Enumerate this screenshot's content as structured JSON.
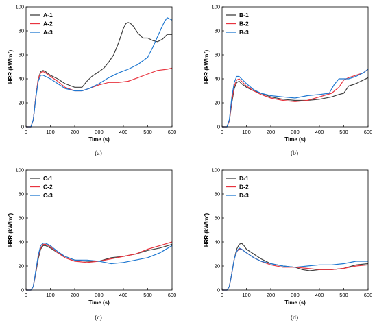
{
  "chart_data": [
    {
      "type": "line",
      "panel_label": "(a)",
      "xlabel": "Time (s)",
      "ylabel_prefix": "HRR (kW/m",
      "ylabel_sup": "2",
      "ylabel_suffix": ")",
      "xlim": [
        0,
        600
      ],
      "ylim": [
        0,
        100
      ],
      "xticks": [
        0,
        100,
        200,
        300,
        400,
        500,
        600
      ],
      "yticks": [
        0,
        20,
        40,
        60,
        80,
        100
      ],
      "grid": false,
      "legend_position": "top-left",
      "series": [
        {
          "name": "A-1",
          "color": "#404040",
          "x": [
            0,
            20,
            30,
            40,
            50,
            60,
            70,
            80,
            100,
            130,
            160,
            200,
            230,
            250,
            270,
            300,
            320,
            340,
            360,
            380,
            400,
            410,
            420,
            430,
            440,
            460,
            480,
            500,
            520,
            540,
            560,
            580,
            600
          ],
          "y": [
            0,
            0,
            6,
            25,
            40,
            46,
            47,
            46,
            43,
            40,
            36,
            33,
            33,
            38,
            42,
            46,
            49,
            54,
            60,
            70,
            82,
            86,
            87,
            86,
            84,
            78,
            74,
            74,
            72,
            71,
            73,
            77,
            77
          ]
        },
        {
          "name": "A-2",
          "color": "#e8343f",
          "x": [
            0,
            20,
            30,
            40,
            50,
            60,
            70,
            80,
            100,
            130,
            160,
            200,
            230,
            260,
            300,
            340,
            380,
            420,
            460,
            500,
            540,
            580,
            600
          ],
          "y": [
            0,
            0,
            6,
            25,
            40,
            45,
            46,
            45,
            42,
            38,
            33,
            30,
            30,
            32,
            35,
            37,
            37,
            38,
            41,
            44,
            47,
            48,
            49
          ]
        },
        {
          "name": "A-3",
          "color": "#1f78d1",
          "x": [
            0,
            20,
            30,
            40,
            50,
            60,
            70,
            80,
            100,
            130,
            160,
            200,
            230,
            260,
            300,
            340,
            380,
            420,
            460,
            500,
            520,
            540,
            560,
            570,
            580,
            590,
            600
          ],
          "y": [
            0,
            0,
            6,
            24,
            38,
            43,
            43,
            42,
            40,
            36,
            32,
            30,
            30,
            32,
            36,
            41,
            45,
            48,
            52,
            58,
            66,
            75,
            84,
            88,
            91,
            90,
            89
          ]
        }
      ]
    },
    {
      "type": "line",
      "panel_label": "(b)",
      "xlabel": "Time (s)",
      "ylabel_prefix": "HRR (kW/m",
      "ylabel_sup": "2",
      "ylabel_suffix": ")",
      "xlim": [
        0,
        600
      ],
      "ylim": [
        0,
        100
      ],
      "xticks": [
        0,
        100,
        200,
        300,
        400,
        500,
        600
      ],
      "yticks": [
        0,
        20,
        40,
        60,
        80,
        100
      ],
      "grid": false,
      "legend_position": "top-left",
      "series": [
        {
          "name": "B-1",
          "color": "#404040",
          "x": [
            0,
            20,
            30,
            40,
            50,
            60,
            70,
            80,
            100,
            130,
            160,
            200,
            250,
            300,
            350,
            400,
            450,
            480,
            500,
            520,
            550,
            580,
            600
          ],
          "y": [
            0,
            0,
            5,
            20,
            32,
            37,
            38,
            36,
            33,
            30,
            28,
            25,
            23,
            22,
            22,
            23,
            25,
            27,
            28,
            34,
            36,
            39,
            41
          ]
        },
        {
          "name": "B-2",
          "color": "#e8343f",
          "x": [
            0,
            20,
            30,
            40,
            50,
            60,
            70,
            80,
            100,
            130,
            160,
            200,
            250,
            300,
            350,
            400,
            450,
            480,
            500,
            520,
            550,
            580,
            600
          ],
          "y": [
            0,
            0,
            5,
            22,
            34,
            39,
            40,
            38,
            34,
            30,
            27,
            24,
            22,
            21,
            22,
            25,
            28,
            33,
            39,
            41,
            43,
            45,
            48
          ]
        },
        {
          "name": "B-3",
          "color": "#1f78d1",
          "x": [
            0,
            20,
            30,
            40,
            50,
            60,
            70,
            80,
            100,
            130,
            160,
            200,
            250,
            300,
            350,
            400,
            440,
            460,
            480,
            500,
            520,
            550,
            580,
            600
          ],
          "y": [
            0,
            0,
            6,
            25,
            37,
            42,
            42,
            40,
            36,
            31,
            28,
            26,
            25,
            24,
            26,
            27,
            28,
            35,
            40,
            40,
            40,
            42,
            45,
            48
          ]
        }
      ]
    },
    {
      "type": "line",
      "panel_label": "(c)",
      "xlabel": "Time (s)",
      "ylabel_prefix": "HRR (kW/m",
      "ylabel_sup": "2",
      "ylabel_suffix": ")",
      "xlim": [
        0,
        600
      ],
      "ylim": [
        0,
        100
      ],
      "xticks": [
        0,
        100,
        200,
        300,
        400,
        500,
        600
      ],
      "yticks": [
        0,
        20,
        40,
        60,
        80,
        100
      ],
      "grid": false,
      "legend_position": "top-left",
      "series": [
        {
          "name": "C-1",
          "color": "#404040",
          "x": [
            0,
            20,
            30,
            40,
            50,
            60,
            70,
            80,
            100,
            130,
            160,
            200,
            250,
            300,
            350,
            400,
            450,
            500,
            550,
            600
          ],
          "y": [
            0,
            0,
            3,
            14,
            26,
            34,
            37,
            37,
            35,
            31,
            28,
            25,
            24,
            24,
            27,
            28,
            30,
            33,
            35,
            38
          ]
        },
        {
          "name": "C-2",
          "color": "#e8343f",
          "x": [
            0,
            20,
            30,
            40,
            50,
            60,
            70,
            80,
            100,
            130,
            160,
            200,
            250,
            300,
            350,
            400,
            450,
            500,
            550,
            600
          ],
          "y": [
            0,
            0,
            3,
            15,
            28,
            35,
            38,
            38,
            36,
            31,
            27,
            24,
            23,
            24,
            26,
            28,
            30,
            34,
            37,
            40
          ]
        },
        {
          "name": "C-3",
          "color": "#1f78d1",
          "x": [
            0,
            20,
            30,
            40,
            50,
            60,
            70,
            80,
            100,
            130,
            160,
            200,
            250,
            300,
            350,
            400,
            450,
            500,
            550,
            600
          ],
          "y": [
            0,
            0,
            3,
            16,
            29,
            37,
            39,
            39,
            37,
            32,
            28,
            25,
            25,
            24,
            22,
            23,
            25,
            27,
            31,
            37
          ]
        }
      ]
    },
    {
      "type": "line",
      "panel_label": "(d)",
      "xlabel": "Time (s)",
      "ylabel_prefix": "HRR (kW/m",
      "ylabel_sup": "2",
      "ylabel_suffix": ")",
      "xlim": [
        0,
        600
      ],
      "ylim": [
        0,
        100
      ],
      "xticks": [
        0,
        100,
        200,
        300,
        400,
        500,
        600
      ],
      "yticks": [
        0,
        20,
        40,
        60,
        80,
        100
      ],
      "grid": false,
      "legend_position": "top-left",
      "series": [
        {
          "name": "D-1",
          "color": "#404040",
          "x": [
            0,
            20,
            30,
            40,
            50,
            60,
            70,
            80,
            90,
            100,
            130,
            160,
            200,
            250,
            300,
            330,
            360,
            400,
            450,
            500,
            550,
            600
          ],
          "y": [
            0,
            0,
            3,
            14,
            26,
            34,
            38,
            39,
            37,
            34,
            30,
            26,
            22,
            20,
            19,
            17,
            16,
            17,
            17,
            18,
            21,
            22
          ]
        },
        {
          "name": "D-2",
          "color": "#e8343f",
          "x": [
            0,
            20,
            30,
            40,
            50,
            60,
            70,
            80,
            100,
            130,
            160,
            200,
            250,
            300,
            350,
            400,
            450,
            500,
            550,
            600
          ],
          "y": [
            0,
            0,
            3,
            14,
            26,
            32,
            34,
            34,
            31,
            27,
            24,
            21,
            19,
            19,
            18,
            17,
            17,
            18,
            20,
            21
          ]
        },
        {
          "name": "D-3",
          "color": "#1f78d1",
          "x": [
            0,
            20,
            30,
            40,
            50,
            60,
            70,
            80,
            100,
            130,
            160,
            200,
            250,
            300,
            350,
            400,
            450,
            500,
            550,
            600
          ],
          "y": [
            0,
            0,
            3,
            14,
            26,
            32,
            35,
            34,
            31,
            27,
            24,
            22,
            20,
            19,
            20,
            21,
            21,
            22,
            24,
            24
          ]
        }
      ]
    }
  ]
}
